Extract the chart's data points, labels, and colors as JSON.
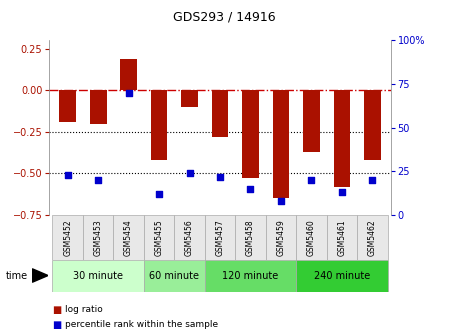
{
  "title": "GDS293 / 14916",
  "samples": [
    "GSM5452",
    "GSM5453",
    "GSM5454",
    "GSM5455",
    "GSM5456",
    "GSM5457",
    "GSM5458",
    "GSM5459",
    "GSM5460",
    "GSM5461",
    "GSM5462"
  ],
  "log_ratio": [
    -0.19,
    -0.2,
    0.19,
    -0.42,
    -0.1,
    -0.28,
    -0.53,
    -0.65,
    -0.37,
    -0.58,
    -0.42
  ],
  "percentile": [
    23,
    20,
    70,
    12,
    24,
    22,
    15,
    8,
    20,
    13,
    20
  ],
  "groups": [
    {
      "label": "30 minute",
      "start": 0,
      "end": 2
    },
    {
      "label": "60 minute",
      "start": 3,
      "end": 4
    },
    {
      "label": "120 minute",
      "start": 5,
      "end": 7
    },
    {
      "label": "240 minute",
      "start": 8,
      "end": 10
    }
  ],
  "group_colors": [
    "#ccffcc",
    "#99ee99",
    "#66dd66",
    "#33cc33"
  ],
  "ylim_left": [
    -0.75,
    0.3
  ],
  "ylim_right": [
    0,
    100
  ],
  "bar_color": "#aa1100",
  "dot_color": "#0000cc",
  "hline_color": "#cc0000",
  "dotline_color": "#000000",
  "background_color": "#ffffff",
  "label_log": "log ratio",
  "label_percentile": "percentile rank within the sample",
  "time_label": "time"
}
